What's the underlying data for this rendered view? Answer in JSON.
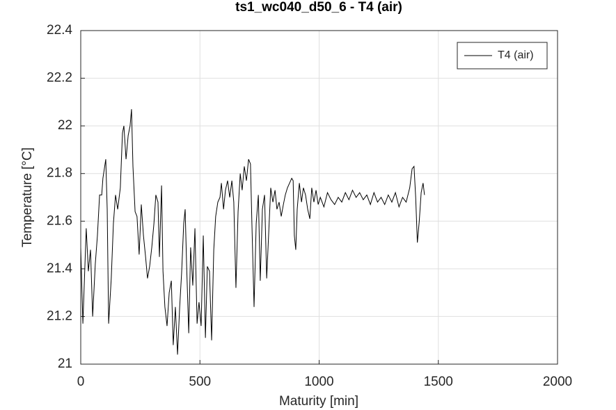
{
  "chart_data": {
    "type": "line",
    "title": "ts1_wc040_d50_6 - T4 (air)",
    "x_label": "Maturity [min]",
    "y_label": "Temperature [°C]",
    "x": [
      0,
      9,
      23,
      32,
      41,
      50,
      61,
      70,
      79,
      88,
      93,
      105,
      111,
      117,
      128,
      137,
      146,
      155,
      166,
      175,
      181,
      190,
      199,
      207,
      213,
      219,
      228,
      236,
      245,
      254,
      263,
      272,
      280,
      289,
      298,
      307,
      315,
      324,
      330,
      339,
      345,
      353,
      362,
      371,
      380,
      388,
      397,
      406,
      415,
      423,
      432,
      438,
      444,
      453,
      461,
      470,
      479,
      488,
      496,
      505,
      514,
      523,
      531,
      540,
      549,
      558,
      566,
      575,
      584,
      590,
      599,
      607,
      616,
      625,
      634,
      642,
      651,
      660,
      669,
      677,
      686,
      695,
      704,
      712,
      718,
      727,
      736,
      745,
      753,
      762,
      771,
      780,
      788,
      797,
      806,
      815,
      823,
      832,
      841,
      850,
      858,
      867,
      876,
      885,
      891,
      896,
      902,
      908,
      917,
      926,
      934,
      943,
      952,
      961,
      969,
      978,
      987,
      996,
      1005,
      1020,
      1035,
      1050,
      1065,
      1080,
      1095,
      1110,
      1125,
      1140,
      1155,
      1170,
      1185,
      1200,
      1215,
      1230,
      1245,
      1260,
      1275,
      1290,
      1305,
      1320,
      1335,
      1350,
      1365,
      1380,
      1390,
      1398,
      1405,
      1412,
      1420,
      1428,
      1436,
      1442
    ],
    "series": [
      {
        "name": "T4 (air)",
        "color": "#000000",
        "values": [
          21.49,
          21.17,
          21.57,
          21.39,
          21.48,
          21.2,
          21.42,
          21.54,
          21.71,
          21.71,
          21.78,
          21.86,
          21.65,
          21.17,
          21.36,
          21.59,
          21.71,
          21.65,
          21.74,
          21.97,
          22.0,
          21.86,
          21.96,
          22.0,
          22.07,
          21.83,
          21.64,
          21.62,
          21.46,
          21.67,
          21.54,
          21.45,
          21.36,
          21.41,
          21.49,
          21.59,
          21.71,
          21.68,
          21.45,
          21.75,
          21.39,
          21.24,
          21.16,
          21.3,
          21.35,
          21.08,
          21.24,
          21.04,
          21.24,
          21.38,
          21.59,
          21.65,
          21.42,
          21.13,
          21.49,
          21.33,
          21.57,
          21.17,
          21.26,
          21.16,
          21.54,
          21.11,
          21.41,
          21.39,
          21.1,
          21.48,
          21.62,
          21.68,
          21.7,
          21.76,
          21.65,
          21.73,
          21.77,
          21.7,
          21.77,
          21.68,
          21.32,
          21.64,
          21.8,
          21.73,
          21.83,
          21.77,
          21.86,
          21.84,
          21.59,
          21.24,
          21.59,
          21.71,
          21.35,
          21.65,
          21.71,
          21.36,
          21.54,
          21.74,
          21.68,
          21.73,
          21.65,
          21.68,
          21.62,
          21.67,
          21.71,
          21.74,
          21.76,
          21.78,
          21.77,
          21.54,
          21.48,
          21.65,
          21.76,
          21.68,
          21.74,
          21.71,
          21.65,
          21.61,
          21.74,
          21.68,
          21.73,
          21.67,
          21.7,
          21.66,
          21.72,
          21.69,
          21.67,
          21.7,
          21.68,
          21.72,
          21.69,
          21.73,
          21.7,
          21.72,
          21.69,
          21.71,
          21.67,
          21.72,
          21.68,
          21.7,
          21.67,
          21.71,
          21.68,
          21.72,
          21.66,
          21.7,
          21.68,
          21.74,
          21.82,
          21.83,
          21.7,
          21.51,
          21.6,
          21.72,
          21.76,
          21.71
        ]
      }
    ],
    "xlim": [
      0,
      2000
    ],
    "xticks": [
      0,
      500,
      1000,
      1500,
      2000
    ],
    "ylim": [
      21,
      22.4
    ],
    "yticks": [
      21,
      21.2,
      21.4,
      21.6,
      21.8,
      22,
      22.2,
      22.4
    ],
    "grid": true,
    "legend": "top-right"
  }
}
